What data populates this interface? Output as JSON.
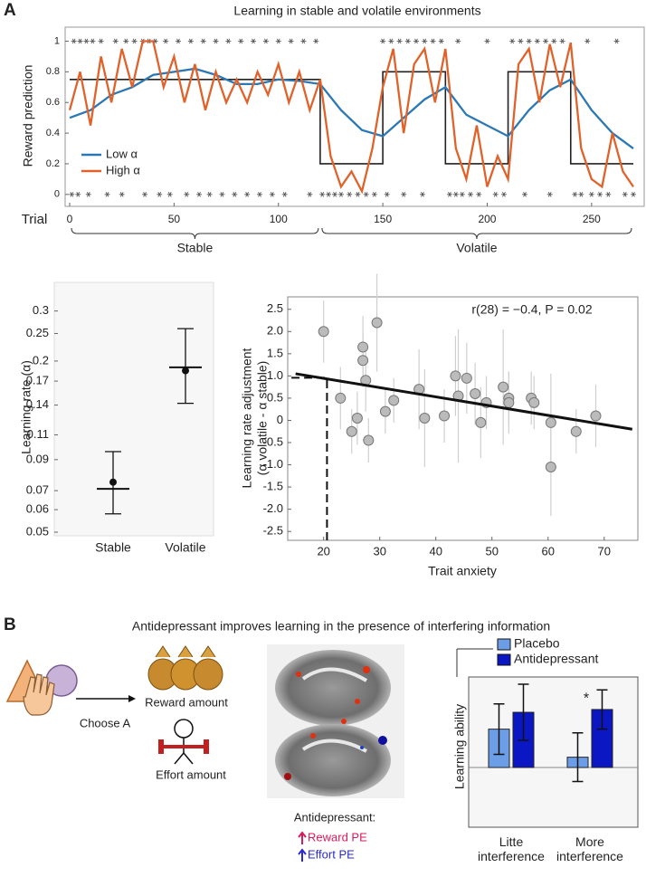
{
  "panel_labels": [
    "A",
    "B"
  ],
  "panel_b_title": "Antidepressant improves learning in the presence of interfering information",
  "diagram": {
    "choice": "Choose A",
    "reward": "Reward amount",
    "effort": "Effort amount",
    "brain_caption": "Antidepressant:",
    "reward_pe": "Reward PE",
    "effort_pe": "Effort PE"
  },
  "chart_data": [
    {
      "type": "line",
      "title": "Learning in stable and volatile environments",
      "xlabel": "Trial",
      "ylabel": "Reward prediction",
      "xlim": [
        0,
        270
      ],
      "ylim": [
        -0.06,
        1.05
      ],
      "xticks": [
        0,
        50,
        100,
        150,
        200,
        250
      ],
      "yticks": [
        0,
        0.2,
        0.4,
        0.6,
        0.8,
        1
      ],
      "legend": "lower left",
      "series": [
        {
          "name": "Low α",
          "color": "#2b78b5",
          "x": [
            0,
            10,
            20,
            30,
            40,
            50,
            60,
            70,
            80,
            90,
            100,
            110,
            120,
            130,
            140,
            150,
            160,
            170,
            180,
            190,
            200,
            210,
            220,
            230,
            240,
            250,
            260,
            270
          ],
          "values": [
            0.5,
            0.55,
            0.65,
            0.7,
            0.78,
            0.8,
            0.82,
            0.78,
            0.72,
            0.72,
            0.75,
            0.74,
            0.72,
            0.55,
            0.42,
            0.38,
            0.5,
            0.62,
            0.7,
            0.52,
            0.45,
            0.38,
            0.55,
            0.68,
            0.75,
            0.55,
            0.4,
            0.3
          ]
        },
        {
          "name": "High α",
          "color": "#e0622a",
          "x": [
            0,
            5,
            10,
            15,
            20,
            25,
            30,
            35,
            40,
            45,
            50,
            55,
            60,
            65,
            70,
            75,
            80,
            85,
            90,
            95,
            100,
            105,
            110,
            115,
            120,
            125,
            130,
            135,
            140,
            145,
            150,
            155,
            160,
            165,
            170,
            175,
            180,
            185,
            190,
            195,
            200,
            205,
            210,
            215,
            220,
            225,
            230,
            235,
            240,
            245,
            250,
            255,
            260,
            265,
            270
          ],
          "values": [
            0.55,
            0.8,
            0.45,
            0.9,
            0.6,
            0.95,
            0.7,
            1,
            1,
            0.7,
            0.9,
            0.6,
            0.85,
            0.55,
            0.8,
            0.6,
            0.75,
            0.6,
            0.8,
            0.65,
            0.85,
            0.6,
            0.8,
            0.55,
            0.75,
            0.25,
            0.05,
            0.15,
            0.02,
            0.3,
            0.7,
            0.95,
            0.4,
            0.85,
            0.95,
            0.6,
            0.95,
            0.3,
            0.1,
            0.45,
            0.05,
            0.25,
            0.1,
            0.85,
            0.95,
            0.6,
            0.98,
            0.7,
            0.99,
            0.3,
            0.1,
            0.05,
            0.4,
            0.15,
            0.05
          ]
        }
      ],
      "truth": {
        "color": "#222222",
        "x": [
          0,
          120,
          120,
          150,
          150,
          180,
          180,
          210,
          210,
          240,
          240,
          270
        ],
        "values": [
          0.75,
          0.75,
          0.2,
          0.2,
          0.8,
          0.8,
          0.2,
          0.2,
          0.8,
          0.8,
          0.2,
          0.2
        ]
      },
      "outcomes": {
        "color": "#555555",
        "x": [
          2,
          5,
          8,
          11,
          15,
          22,
          27,
          31,
          35,
          38,
          41,
          46,
          52,
          58,
          64,
          70,
          76,
          82,
          88,
          94,
          100,
          106,
          112,
          118,
          150,
          154,
          158,
          162,
          166,
          170,
          174,
          178,
          186,
          200,
          212,
          216,
          220,
          224,
          228,
          232,
          236,
          248,
          262,
          1,
          4,
          9,
          18,
          25,
          36,
          43,
          48,
          56,
          62,
          67,
          73,
          79,
          85,
          91,
          97,
          103,
          115,
          121,
          124,
          127,
          130,
          134,
          138,
          142,
          146,
          152,
          160,
          169,
          182,
          185,
          188,
          192,
          196,
          204,
          208,
          218,
          230,
          242,
          245,
          250,
          254,
          258,
          266,
          270
        ],
        "values": [
          1,
          1,
          1,
          1,
          1,
          1,
          1,
          1,
          1,
          1,
          1,
          1,
          1,
          1,
          1,
          1,
          1,
          1,
          1,
          1,
          1,
          1,
          1,
          1,
          1,
          1,
          1,
          1,
          1,
          1,
          1,
          1,
          1,
          1,
          1,
          1,
          1,
          1,
          1,
          1,
          1,
          1,
          1,
          0,
          0,
          0,
          0,
          0,
          0,
          0,
          0,
          0,
          0,
          0,
          0,
          0,
          0,
          0,
          0,
          0,
          0,
          0,
          0,
          0,
          0,
          0,
          0,
          0,
          0,
          0,
          0,
          0,
          0,
          0,
          0,
          0,
          0,
          0,
          0,
          0,
          0,
          0,
          0,
          0,
          0,
          0,
          0,
          0
        ]
      },
      "regions": [
        {
          "label": "Stable",
          "range": [
            0,
            120
          ]
        },
        {
          "label": "Volatile",
          "range": [
            120,
            270
          ]
        }
      ]
    },
    {
      "type": "errorbar",
      "ylabel": "Learning rate (α)",
      "log_y": true,
      "ylim": [
        0.05,
        0.37
      ],
      "yticks": [
        0.05,
        0.06,
        0.07,
        0.09,
        0.11,
        0.14,
        0.17,
        0.2,
        0.25,
        0.3
      ],
      "categories": [
        "Stable",
        "Volatile"
      ],
      "values": [
        0.071,
        0.19
      ],
      "points": [
        0.075,
        0.185
      ],
      "lower": [
        0.058,
        0.142
      ],
      "upper": [
        0.096,
        0.26
      ],
      "color": "#111111"
    },
    {
      "type": "scatter",
      "xlabel": "Trait anxiety",
      "ylabel": [
        "Learning rate adjustment",
        "(α volatile - α stable)"
      ],
      "annotation": "r(28) = −0.4, P = 0.02",
      "xlim": [
        13.6,
        76
      ],
      "ylim": [
        -2.7,
        2.78
      ],
      "xticks": [
        20,
        30,
        40,
        50,
        60,
        70
      ],
      "yticks": [
        2.5,
        {
          "value": 2,
          "label": "2.0"
        },
        1.5,
        {
          "value": 1,
          "label": "1.0"
        },
        0.5,
        0,
        -0.5,
        {
          "value": -1,
          "label": "-1.0"
        },
        -1.5,
        {
          "value": -2,
          "label": "-2.0"
        },
        -2.5
      ],
      "x": [
        20,
        23,
        25,
        26,
        27,
        27,
        27.5,
        28,
        29.5,
        31,
        32.5,
        37,
        38,
        41.5,
        43.5,
        44,
        45.5,
        47,
        48,
        49,
        52,
        53,
        53,
        57,
        57.5,
        60.5,
        60.5,
        65,
        68.5
      ],
      "values": [
        2.0,
        0.5,
        -0.25,
        0.05,
        1.65,
        1.35,
        0.9,
        -0.45,
        2.2,
        0.2,
        0.45,
        0.7,
        0.05,
        0.1,
        1.0,
        0.55,
        0.95,
        0.6,
        -0.05,
        0.4,
        0.75,
        0.5,
        0.4,
        0.5,
        0.4,
        -0.05,
        -1.05,
        -0.25,
        0.1
      ],
      "errors": [
        0.7,
        0.7,
        0.5,
        0.6,
        0.7,
        0.6,
        0.7,
        0.5,
        1.1,
        0.5,
        0.5,
        0.9,
        1.1,
        0.6,
        0.9,
        1.5,
        0.8,
        0.7,
        0.8,
        0.6,
        1.3,
        0.6,
        0.7,
        0.6,
        0.6,
        1.1,
        1.1,
        0.5,
        0.7
      ],
      "color": "#bbbbbb",
      "fit": {
        "x": [
          15,
          75
        ],
        "values": [
          1.05,
          -0.2
        ]
      },
      "reference": {
        "x": 20.6,
        "y": 0.96
      }
    },
    {
      "type": "bar",
      "ylabel": "Learning ability",
      "ylim": [
        -0.6,
        0.9
      ],
      "legend": "top",
      "annotation": "*",
      "categories": [
        "Litte interference",
        "More interference"
      ],
      "series": [
        {
          "name": "Placebo",
          "color": "#6b9ee6",
          "values": [
            0.41,
            0.11
          ],
          "errors": [
            0.27,
            0.26
          ]
        },
        {
          "name": "Antidepressant",
          "color": "#0a17c2",
          "values": [
            0.59,
            0.62
          ],
          "errors": [
            0.3,
            0.21
          ]
        }
      ]
    }
  ]
}
